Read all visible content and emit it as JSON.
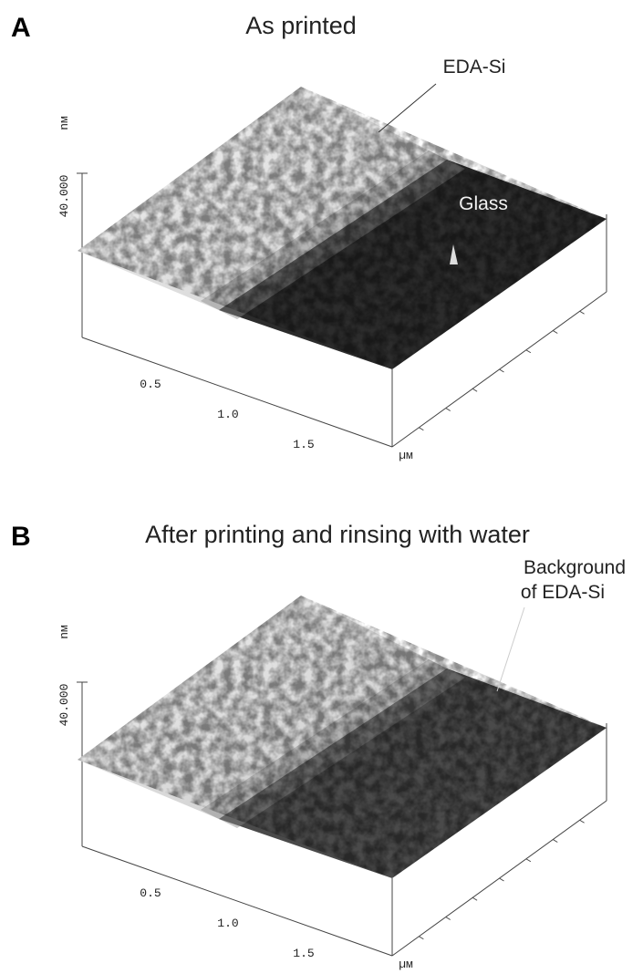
{
  "panels": [
    {
      "label": "A",
      "title": "As printed",
      "annotations": [
        "EDA-Si",
        "Glass"
      ],
      "z_axis": {
        "tick": "40.000",
        "unit": "nм"
      },
      "x_axis": {
        "ticks": [
          "0.5",
          "1.0",
          "1.5"
        ],
        "unit": "µм"
      }
    },
    {
      "label": "B",
      "title": "After printing and rinsing with water",
      "annotations": [
        "Background",
        "of EDA-Si"
      ],
      "z_axis": {
        "tick": "40.000",
        "unit": "nм"
      },
      "x_axis": {
        "ticks": [
          "0.5",
          "1.0",
          "1.5"
        ],
        "unit": "µм"
      }
    }
  ]
}
